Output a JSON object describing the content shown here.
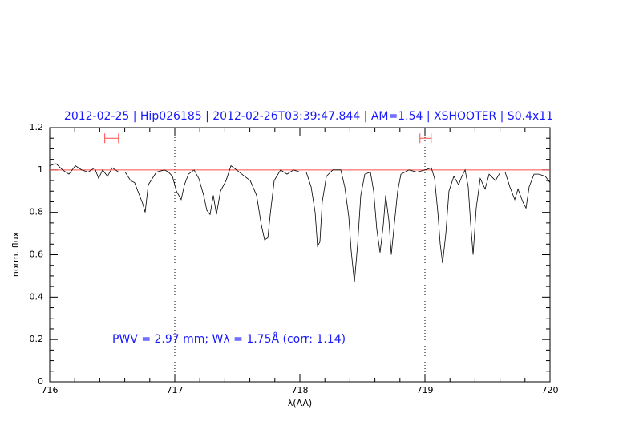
{
  "chart_data": {
    "type": "line",
    "title": "2012-02-25 | Hip026185 | 2012-02-26T03:39:47.844 | AM=1.54 | XSHOOTER | S0.4x11",
    "xlabel": "λ(AA)",
    "ylabel": "norm. flux",
    "annotation": "PWV = 2.97 mm; Wλ = 1.75Å (corr: 1.14)",
    "color": "#000000",
    "x": [
      716.0,
      716.051,
      716.103,
      716.154,
      716.205,
      716.256,
      716.308,
      716.359,
      716.391,
      716.423,
      716.462,
      716.5,
      716.551,
      716.603,
      716.647,
      716.679,
      716.718,
      716.744,
      716.763,
      716.788,
      716.821,
      716.853,
      716.917,
      716.949,
      716.981,
      717.013,
      717.051,
      717.077,
      717.109,
      717.154,
      717.192,
      717.231,
      717.256,
      717.282,
      717.308,
      717.333,
      717.365,
      717.41,
      717.449,
      717.494,
      717.558,
      717.603,
      717.654,
      717.692,
      717.718,
      717.744,
      717.763,
      717.795,
      717.846,
      717.897,
      717.949,
      718.0,
      718.051,
      718.09,
      718.122,
      718.141,
      718.16,
      718.179,
      718.212,
      718.263,
      718.327,
      718.359,
      718.391,
      718.41,
      718.436,
      718.462,
      718.487,
      718.519,
      718.564,
      718.59,
      718.615,
      718.641,
      718.667,
      718.686,
      718.712,
      718.731,
      718.756,
      718.782,
      718.808,
      718.872,
      718.936,
      719.0,
      719.051,
      719.077,
      719.103,
      719.122,
      719.141,
      719.167,
      719.192,
      719.231,
      719.269,
      719.295,
      719.321,
      719.346,
      719.365,
      719.385,
      719.41,
      719.442,
      719.481,
      719.513,
      719.564,
      719.603,
      719.641,
      719.679,
      719.718,
      719.744,
      719.782,
      719.808,
      719.833,
      719.872,
      719.91,
      719.962,
      720.0
    ],
    "values": [
      1.02,
      1.03,
      1.0,
      0.98,
      1.02,
      1.0,
      0.99,
      1.01,
      0.96,
      1.0,
      0.97,
      1.01,
      0.99,
      0.99,
      0.95,
      0.94,
      0.88,
      0.84,
      0.8,
      0.93,
      0.96,
      0.99,
      1.0,
      0.99,
      0.97,
      0.9,
      0.86,
      0.93,
      0.98,
      1.0,
      0.96,
      0.88,
      0.81,
      0.79,
      0.88,
      0.79,
      0.9,
      0.95,
      1.02,
      1.0,
      0.97,
      0.95,
      0.88,
      0.74,
      0.67,
      0.68,
      0.79,
      0.95,
      1.0,
      0.98,
      1.0,
      0.99,
      0.99,
      0.92,
      0.8,
      0.64,
      0.66,
      0.85,
      0.97,
      1.0,
      1.0,
      0.92,
      0.78,
      0.62,
      0.47,
      0.65,
      0.88,
      0.98,
      0.99,
      0.9,
      0.72,
      0.61,
      0.74,
      0.88,
      0.76,
      0.6,
      0.75,
      0.9,
      0.98,
      1.0,
      0.99,
      1.0,
      1.01,
      0.96,
      0.8,
      0.65,
      0.56,
      0.7,
      0.9,
      0.97,
      0.93,
      0.97,
      1.0,
      0.92,
      0.75,
      0.6,
      0.82,
      0.96,
      0.91,
      0.98,
      0.95,
      0.99,
      0.99,
      0.92,
      0.86,
      0.91,
      0.85,
      0.82,
      0.92,
      0.98,
      0.98,
      0.97,
      0.94
    ],
    "xlim": [
      716,
      720
    ],
    "ylim": [
      0,
      1.2
    ],
    "xticks": [
      716,
      717,
      718,
      719,
      720
    ],
    "yticks": [
      0,
      0.2,
      0.4,
      0.6,
      0.8,
      1,
      1.2
    ],
    "hline": 1,
    "hline_color": "#ff4d4d",
    "vlines": [
      717,
      719
    ],
    "ranges": [
      {
        "x": [
          716.44,
          716.55
        ],
        "y": 1.15
      },
      {
        "x": [
          718.96,
          719.05
        ],
        "y": 1.15
      }
    ],
    "range_color": "#ff4d4d"
  }
}
